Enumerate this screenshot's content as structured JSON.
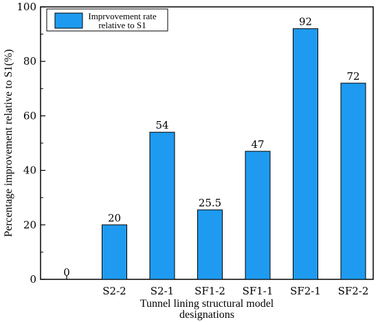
{
  "chart_data": {
    "type": "bar",
    "categories": [
      "",
      "S2-2",
      "S2-1",
      "SF1-2",
      "SF1-1",
      "SF2-1",
      "SF2-2"
    ],
    "values": [
      0,
      20,
      54,
      25.5,
      47,
      92,
      72
    ],
    "value_labels": [
      "0",
      "20",
      "54",
      "25.5",
      "47",
      "92",
      "72"
    ],
    "xlabel_line1": "Tunnel lining structural model",
    "xlabel_line2": "designations",
    "ylabel": "Percentage improvement relative to S1(%)",
    "ylim": [
      0,
      100
    ],
    "yticks": [
      "0",
      "20",
      "40",
      "60",
      "80",
      "100"
    ],
    "legend": {
      "line1": "Imprvovement rate",
      "line2": "relative to S1",
      "placement": "top-left"
    },
    "bar_color": "#1e9bf0",
    "bar_edge_color": "#000000",
    "grid": false
  }
}
